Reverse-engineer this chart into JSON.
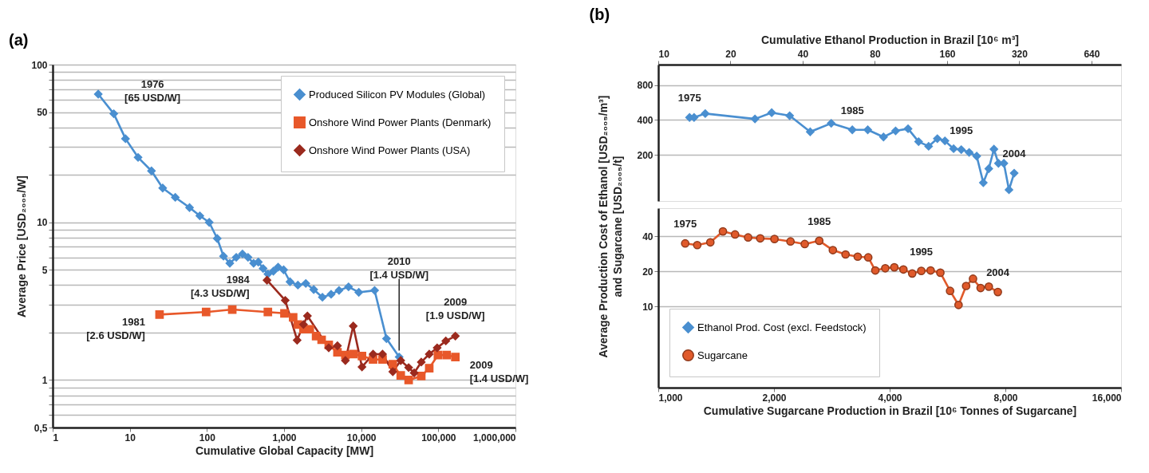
{
  "chart_data": [
    {
      "type": "line",
      "title": "(a)",
      "xlabel": "Cumulative Global Capacity [MW]",
      "ylabel": "Average Price [USD₂₀₀₅/W]",
      "log": "xy",
      "xlim": [
        1,
        1000000
      ],
      "xticks": [
        1,
        10,
        100,
        {
          "value": 1000,
          "label": "1,000"
        },
        {
          "value": 10000,
          "label": "10,000"
        },
        {
          "value": 100000,
          "label": "100,000"
        },
        {
          "value": 1000000,
          "label": "1,000,000"
        }
      ],
      "ylim": [
        0.5,
        100
      ],
      "yticks": [
        {
          "value": 0.5,
          "label": "0,5"
        },
        {
          "value": 0.6,
          "label": null
        },
        {
          "value": 0.7,
          "label": null
        },
        {
          "value": 0.8,
          "label": null
        },
        {
          "value": 0.9,
          "label": null
        },
        1,
        {
          "value": 2,
          "label": null
        },
        {
          "value": 3,
          "label": null
        },
        {
          "value": 4,
          "label": null
        },
        5,
        {
          "value": 6,
          "label": null
        },
        {
          "value": 7,
          "label": null
        },
        {
          "value": 8,
          "label": null
        },
        {
          "value": 9,
          "label": null
        },
        10,
        {
          "value": 20,
          "label": null
        },
        {
          "value": 30,
          "label": null
        },
        {
          "value": 40,
          "label": null
        },
        50,
        {
          "value": 60,
          "label": null
        },
        {
          "value": 70,
          "label": null
        },
        {
          "value": 80,
          "label": null
        },
        {
          "value": 90,
          "label": null
        },
        100
      ],
      "grid": "y",
      "legend": "top right",
      "series": [
        {
          "name": "Produced Silicon PV Modules (Global)",
          "color": "#4a8fd0",
          "marker": "diamond",
          "x": [
            3.9,
            6.2,
            8.8,
            12.8,
            19.1,
            26.7,
            38.9,
            59.5,
            80.9,
            107,
            136,
            164,
            198,
            240,
            289,
            341,
            403,
            464,
            535,
            617,
            727,
            838,
            988,
            1194,
            1511,
            1914,
            2425,
            3143,
            4074,
            5162,
            6855,
            9310,
            14930,
            21280,
            31050
          ],
          "values": [
            65,
            48.8,
            33.9,
            25.8,
            21.2,
            16.5,
            14.4,
            12.4,
            11.0,
            10.0,
            7.9,
            6.1,
            5.5,
            6.0,
            6.3,
            6.0,
            5.5,
            5.6,
            5.1,
            4.7,
            4.9,
            5.2,
            5.0,
            4.2,
            4.0,
            4.1,
            3.75,
            3.35,
            3.5,
            3.7,
            3.9,
            3.6,
            3.7,
            1.83,
            1.4
          ]
        },
        {
          "name": "Onshore Wind Power Plants (Denmark)",
          "color": "#e8582a",
          "marker": "square",
          "x": [
            24.3,
            97.6,
            213,
            617,
            1012,
            1312,
            1511,
            1784,
            2155,
            2602,
            3070,
            3796,
            4922,
            6237,
            7889,
            10240,
            14260,
            18910,
            25700,
            32560,
            41220,
            60110,
            76250,
            98850,
            128200,
            166300
          ],
          "values": [
            2.6,
            2.7,
            2.8,
            2.7,
            2.65,
            2.5,
            2.25,
            2.1,
            2.1,
            1.9,
            1.8,
            1.67,
            1.5,
            1.44,
            1.46,
            1.42,
            1.35,
            1.35,
            1.26,
            1.07,
            1.0,
            1.06,
            1.19,
            1.44,
            1.44,
            1.4
          ]
        },
        {
          "name": "Onshore Wind Power Plants (USA)",
          "color": "#9b2a1e",
          "marker": "diamond",
          "x": [
            601,
            1036,
            1477,
            1784,
            2009,
            3796,
            4922,
            6237,
            7889,
            10240,
            14260,
            18910,
            25700,
            32560,
            41220,
            48630,
            60110,
            76250,
            96600,
            125000,
            166300
          ],
          "values": [
            4.3,
            3.2,
            1.79,
            2.25,
            2.55,
            1.6,
            1.65,
            1.33,
            2.2,
            1.21,
            1.46,
            1.46,
            1.13,
            1.33,
            1.2,
            1.11,
            1.3,
            1.46,
            1.6,
            1.77,
            1.9
          ]
        }
      ],
      "annotations": [
        {
          "text": "1976\n[65 USD/W]",
          "x": 3.9,
          "y": 65
        },
        {
          "text": "2010\n[1.4 USD/W]",
          "x": 31050,
          "y": 1.4
        },
        {
          "text": "1984\n[4.3 USD/W]",
          "x": 601,
          "y": 4.3
        },
        {
          "text": "1981\n[2.6 USD/W]",
          "x": 24.3,
          "y": 2.6
        },
        {
          "text": "2009\n[1.9 USD/W]",
          "x": 166300,
          "y": 1.9
        },
        {
          "text": "2009\n[1.4 USD/W]",
          "x": 166300,
          "y": 1.4
        }
      ]
    },
    {
      "type": "line",
      "title": "(b)",
      "xlabel": "Cumulative Ethanol Production in Brazil [10⁶ m³]",
      "ylabel": "Average Production Cost of Ethanol [USD₂₀₀₅/m³]",
      "log": "xy",
      "xlim": [
        10,
        850
      ],
      "xticks": [
        10,
        20,
        40,
        80,
        160,
        320,
        640
      ],
      "ylim": [
        80,
        1200
      ],
      "yticks": [
        200,
        400,
        800
      ],
      "grid": "y",
      "legend": "bottom left",
      "series": [
        {
          "name": "Ethanol Prod. Cost (excl. Feedstock)",
          "color": "#4a8fd0",
          "marker": "diamond",
          "x": [
            13.5,
            14.1,
            15.7,
            25.3,
            29.7,
            35.3,
            43.0,
            52.6,
            64.4,
            74.7,
            86.9,
            97.6,
            110,
            121.7,
            134,
            145.7,
            156.7,
            170.3,
            183.3,
            197.7,
            212.6,
            226.5,
            238.7,
            250.8,
            261.9,
            275.9,
            289.8,
            304.6
          ],
          "values": [
            420,
            420,
            454,
            408,
            462,
            435,
            316,
            374,
            329,
            329,
            285,
            322,
            336,
            260,
            237,
            276,
            264,
            226,
            222,
            210,
            195,
            115,
            152,
            224,
            169,
            169,
            100,
            139
          ]
        }
      ],
      "annotations": [
        {
          "text": "1975",
          "x": 13.5,
          "y": 420
        },
        {
          "text": "1985",
          "x": 64.4,
          "y": 329
        },
        {
          "text": "1995",
          "x": 183.3,
          "y": 222
        },
        {
          "text": "2004",
          "x": 304.6,
          "y": 139
        }
      ]
    },
    {
      "type": "line",
      "xlabel": "Cumulative Sugarcane Production in Brazil [10⁶  Tonnes of Sugarcane]",
      "ylabel": "and Sugarcane [USD₂₀₀₅/t]",
      "log": "xy",
      "xlim": [
        1000,
        16000
      ],
      "xticks": [
        {
          "value": 1000,
          "label": "1,000"
        },
        {
          "value": 2000,
          "label": "2,000"
        },
        {
          "value": 4000,
          "label": "4,000"
        },
        {
          "value": 8000,
          "label": "8,000"
        },
        {
          "value": 16000,
          "label": "16,000"
        }
      ],
      "ylim": [
        2,
        70
      ],
      "yticks": [
        10,
        20,
        40
      ],
      "grid": "y",
      "legend": "bottom left",
      "series": [
        {
          "name": "Sugarcane",
          "color": "#e05a2b",
          "marker": "circle",
          "x": [
            1175,
            1263,
            1366,
            1473,
            1584,
            1713,
            1842,
            2006,
            2208,
            2405,
            2623,
            2846,
            3071,
            3303,
            3518,
            3670,
            3896,
            4113,
            4343,
            4578,
            4834,
            5112,
            5419,
            5744,
            6043,
            6324,
            6590,
            6897,
            7244,
            7648
          ],
          "values": [
            34.8,
            33.7,
            35.6,
            44.2,
            41.6,
            39.2,
            38.5,
            38.0,
            36.2,
            34.4,
            36.7,
            30.5,
            28.0,
            26.8,
            26.4,
            20.4,
            21.3,
            21.7,
            20.8,
            19.2,
            20.2,
            20.4,
            19.5,
            13.6,
            10.3,
            15.0,
            17.3,
            14.4,
            14.8,
            13.3
          ]
        }
      ],
      "annotations": [
        {
          "text": "1975",
          "x": 1175,
          "y": 34.8
        },
        {
          "text": "1985",
          "x": 2623,
          "y": 36.7
        },
        {
          "text": "1995",
          "x": 4834,
          "y": 20.2
        },
        {
          "text": "2004",
          "x": 7648,
          "y": 13.3
        }
      ]
    }
  ]
}
